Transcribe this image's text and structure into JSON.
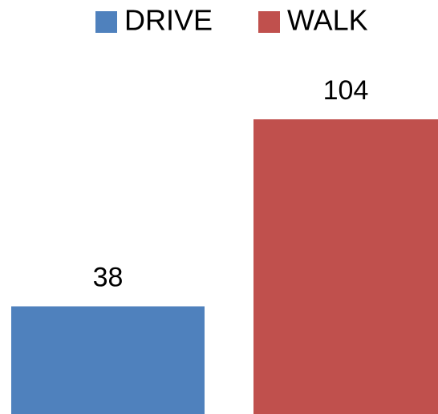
{
  "chart_data": {
    "type": "bar",
    "series": [
      {
        "name": "DRIVE",
        "color": "#4f81bd",
        "values": [
          38
        ]
      },
      {
        "name": "WALK",
        "color": "#c0504d",
        "values": [
          104
        ]
      }
    ],
    "legend": "top"
  }
}
